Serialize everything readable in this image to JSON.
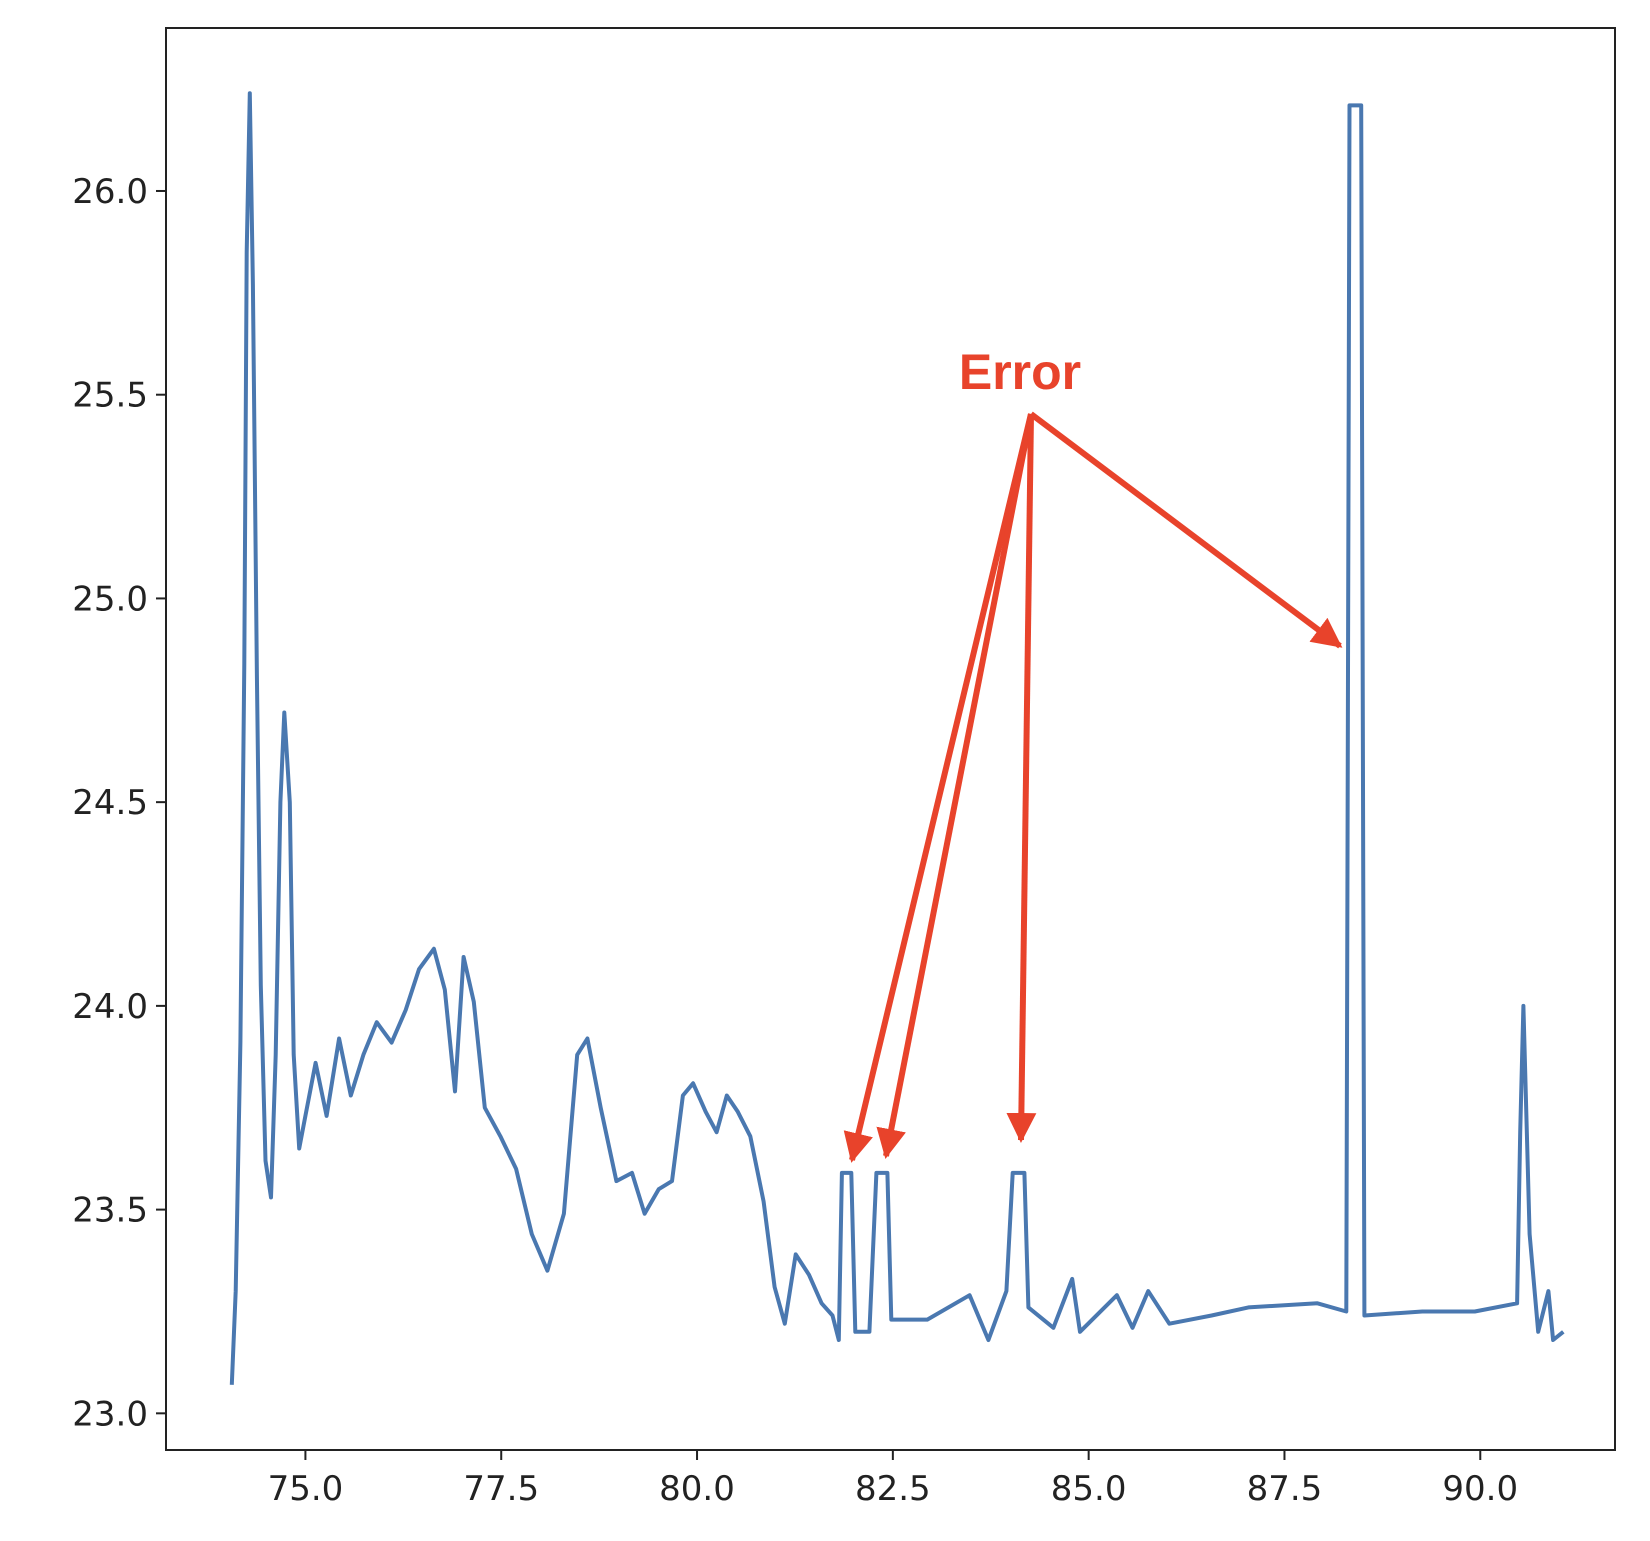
{
  "chart_data": {
    "type": "line",
    "annotation": "Error",
    "x": [
      74.06,
      74.11,
      74.17,
      74.22,
      74.25,
      74.29,
      74.33,
      74.38,
      74.43,
      74.49,
      74.56,
      74.62,
      74.68,
      74.73,
      74.8,
      74.85,
      74.92,
      75.0,
      75.13,
      75.27,
      75.43,
      75.58,
      75.74,
      75.91,
      76.1,
      76.28,
      76.45,
      76.64,
      76.78,
      76.91,
      77.02,
      77.15,
      77.29,
      77.49,
      77.69,
      77.89,
      78.09,
      78.3,
      78.47,
      78.6,
      78.77,
      78.97,
      79.17,
      79.33,
      79.51,
      79.68,
      79.82,
      79.95,
      80.11,
      80.25,
      80.38,
      80.52,
      80.68,
      80.85,
      80.99,
      81.12,
      81.26,
      81.43,
      81.59,
      81.73,
      81.81,
      81.85,
      81.97,
      82.02,
      82.2,
      82.29,
      82.43,
      82.48,
      82.94,
      83.48,
      83.72,
      83.95,
      84.03,
      84.18,
      84.23,
      84.55,
      84.79,
      84.89,
      85.36,
      85.56,
      85.76,
      86.03,
      86.57,
      87.04,
      87.92,
      88.29,
      88.33,
      88.48,
      88.52,
      89.26,
      89.93,
      90.47,
      90.51,
      90.55,
      90.63,
      90.74,
      90.87,
      90.93,
      91.06
    ],
    "series": [
      {
        "color": "#4a78b0",
        "values": [
          23.07,
          23.3,
          23.91,
          24.84,
          25.85,
          26.24,
          25.77,
          24.81,
          24.05,
          23.62,
          23.53,
          23.88,
          24.5,
          24.72,
          24.5,
          23.88,
          23.65,
          23.73,
          23.86,
          23.73,
          23.92,
          23.78,
          23.88,
          23.96,
          23.91,
          23.99,
          24.09,
          24.14,
          24.04,
          23.79,
          24.12,
          24.01,
          23.75,
          23.68,
          23.6,
          23.44,
          23.35,
          23.49,
          23.88,
          23.92,
          23.75,
          23.57,
          23.59,
          23.49,
          23.55,
          23.57,
          23.78,
          23.81,
          23.74,
          23.69,
          23.78,
          23.74,
          23.68,
          23.52,
          23.31,
          23.22,
          23.39,
          23.34,
          23.27,
          23.24,
          23.18,
          23.59,
          23.59,
          23.2,
          23.2,
          23.59,
          23.59,
          23.23,
          23.23,
          23.29,
          23.18,
          23.3,
          23.59,
          23.59,
          23.26,
          23.21,
          23.33,
          23.2,
          23.29,
          23.21,
          23.3,
          23.22,
          23.24,
          23.26,
          23.27,
          23.25,
          26.21,
          26.21,
          23.24,
          23.25,
          23.25,
          23.27,
          23.69,
          24.0,
          23.44,
          23.2,
          23.3,
          23.18,
          23.2
        ]
      }
    ],
    "xlim": [
      73.22,
      91.72
    ],
    "ylim": [
      22.91,
      26.4
    ],
    "xticks": [
      {
        "value": 75,
        "label": "75.0"
      },
      77.5,
      {
        "value": 80,
        "label": "80.0"
      },
      82.5,
      {
        "value": 85,
        "label": "85.0"
      },
      87.5,
      {
        "value": 90,
        "label": "90.0"
      }
    ],
    "yticks": [
      {
        "value": 23,
        "label": "23.0"
      },
      23.5,
      {
        "value": 24,
        "label": "24.0"
      },
      24.5,
      {
        "value": 25,
        "label": "25.0"
      },
      25.5,
      {
        "value": 26,
        "label": "26.0"
      }
    ],
    "grid": false
  }
}
